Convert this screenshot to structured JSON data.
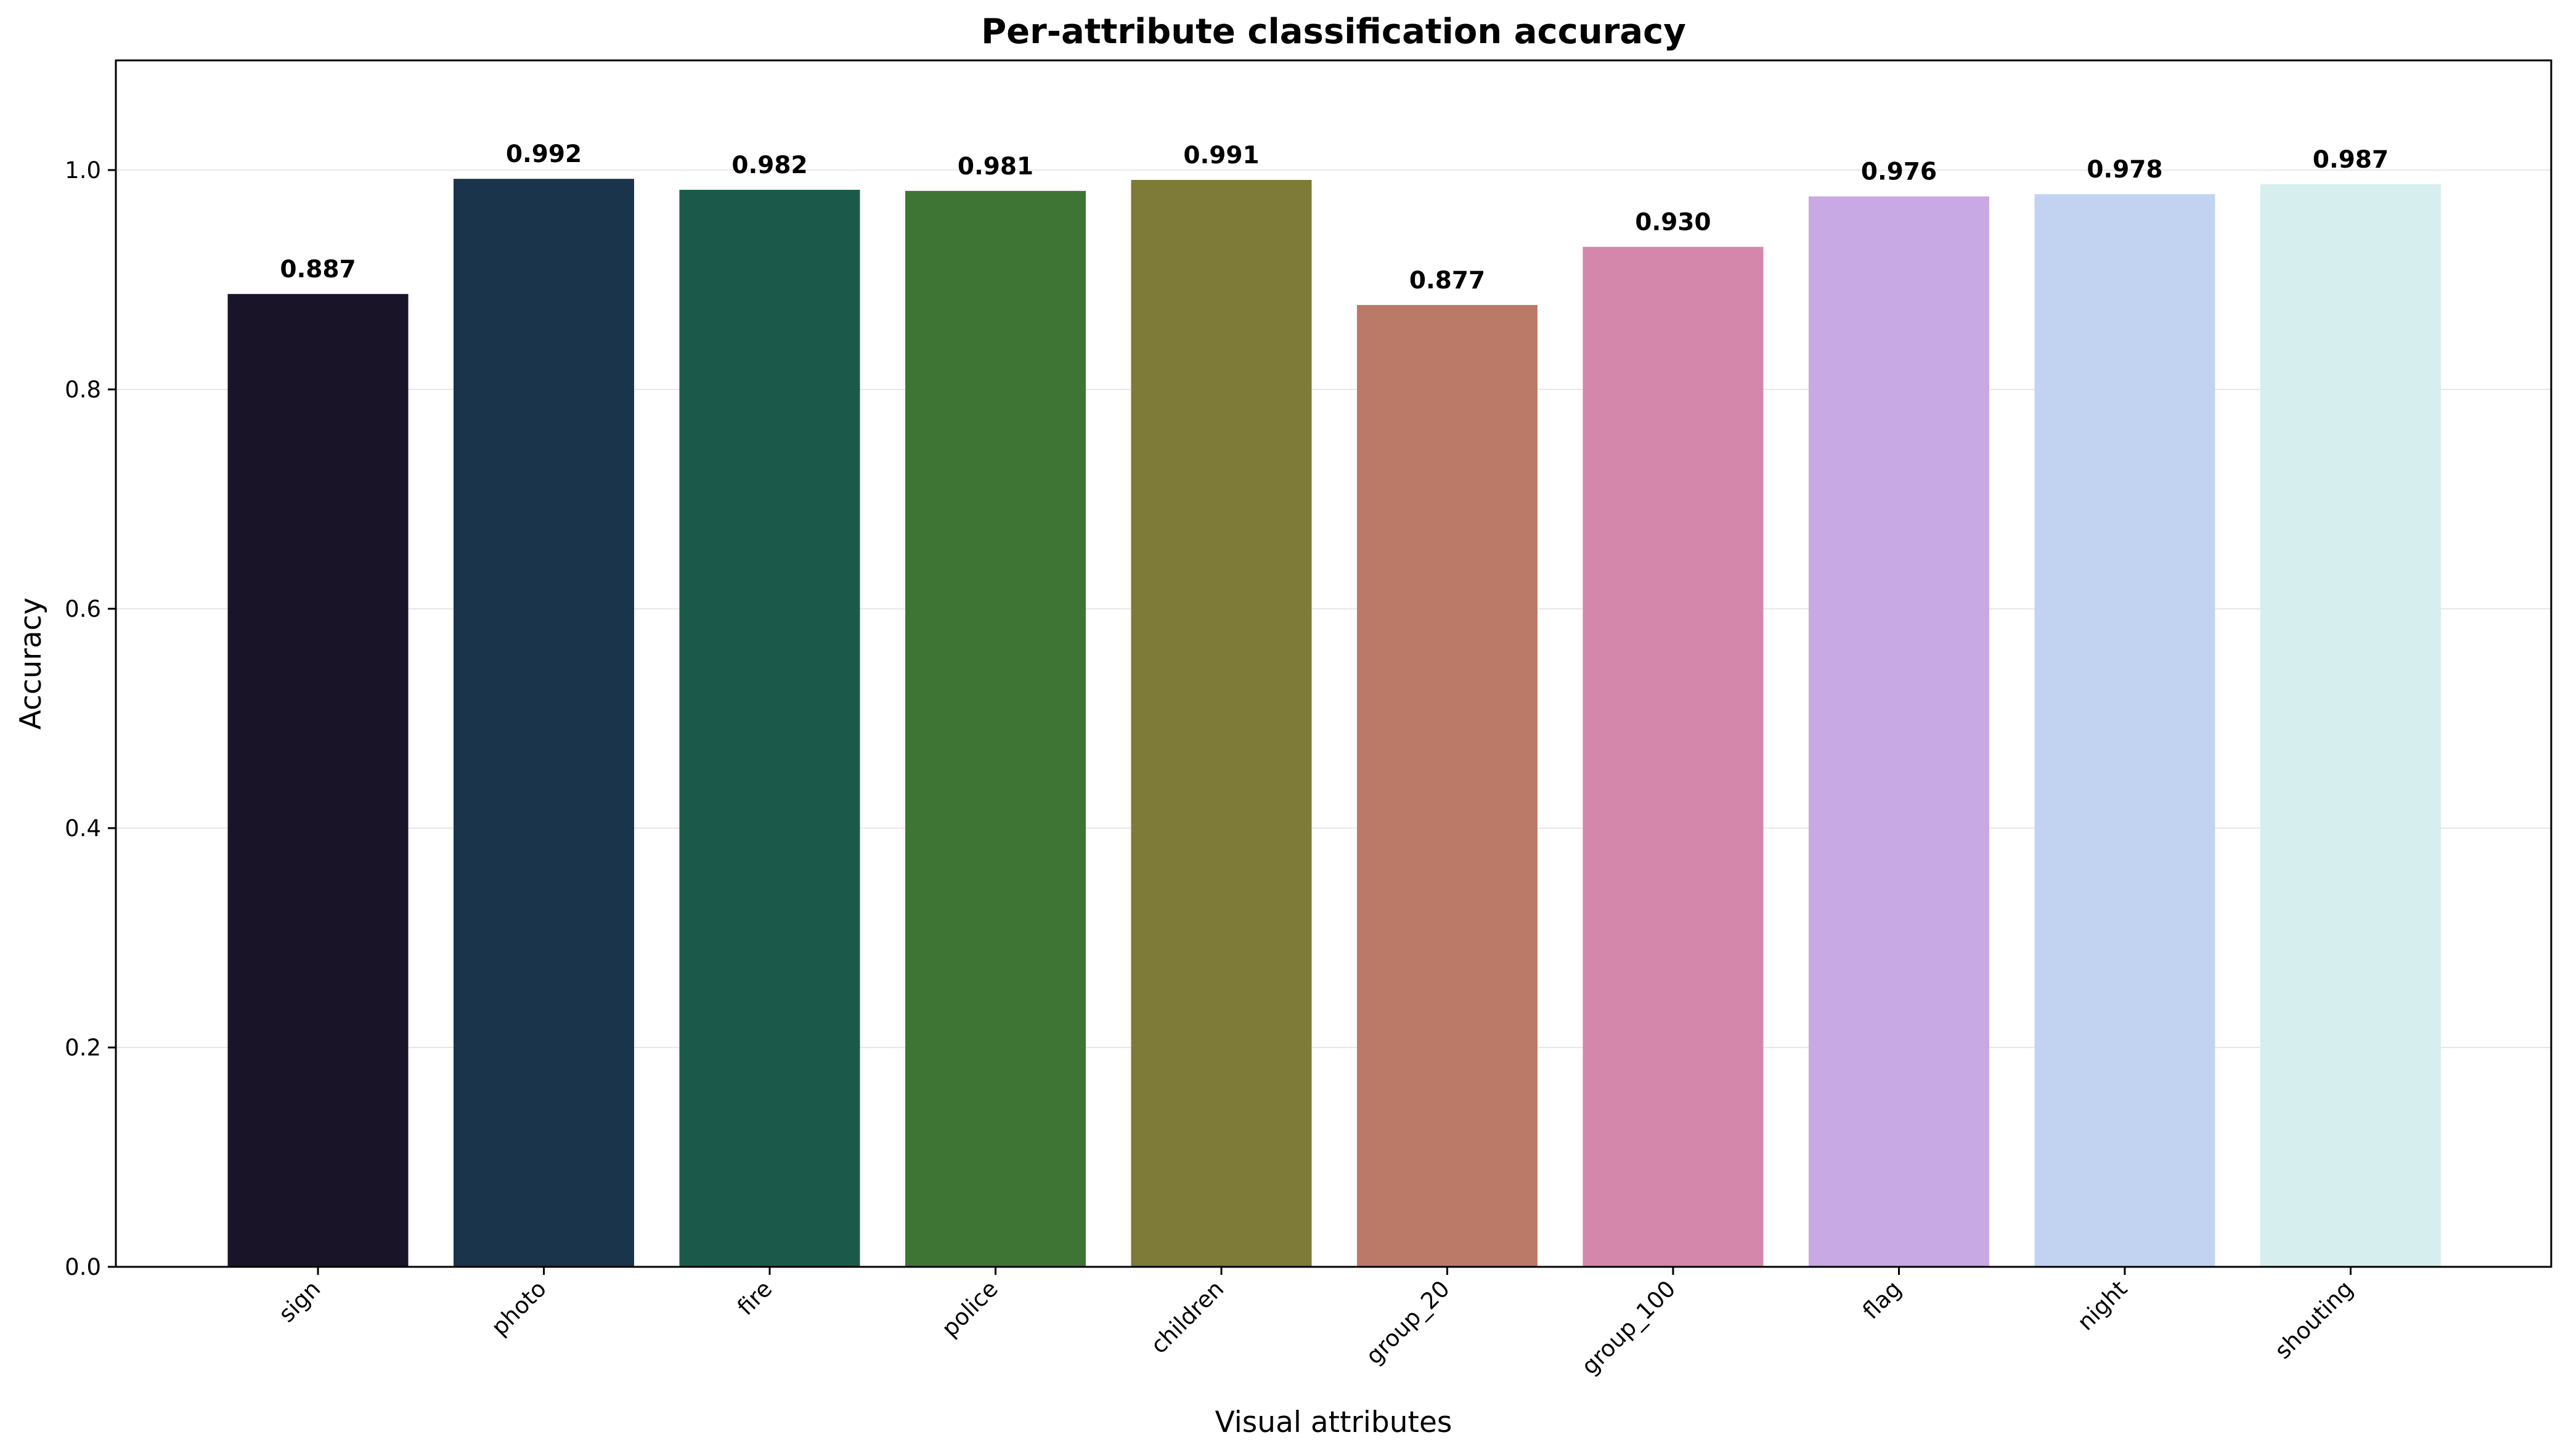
{
  "chart_data": {
    "type": "bar",
    "title": "Per-attribute classification accuracy",
    "xlabel": "Visual attributes",
    "ylabel": "Accuracy",
    "categories": [
      "sign",
      "photo",
      "fire",
      "police",
      "children",
      "group_20",
      "group_100",
      "flag",
      "night",
      "shouting"
    ],
    "values": [
      0.887,
      0.992,
      0.982,
      0.981,
      0.991,
      0.877,
      0.93,
      0.976,
      0.978,
      0.987
    ],
    "value_labels": [
      "0.887",
      "0.992",
      "0.982",
      "0.981",
      "0.991",
      "0.877",
      "0.930",
      "0.976",
      "0.978",
      "0.987"
    ],
    "colors": [
      "#1a1429",
      "#19344b",
      "#1b5a4a",
      "#3e7534",
      "#7e7a37",
      "#bb7a68",
      "#d486ab",
      "#c9a9e4",
      "#c2d3f2",
      "#d6eeee"
    ],
    "ylim": [
      0,
      1.1
    ],
    "yticks": [
      0.0,
      0.2,
      0.4,
      0.6,
      0.8,
      1.0
    ],
    "ytick_labels": [
      "0.0",
      "0.2",
      "0.4",
      "0.6",
      "0.8",
      "1.0"
    ],
    "grid": "y",
    "legend": "none"
  }
}
